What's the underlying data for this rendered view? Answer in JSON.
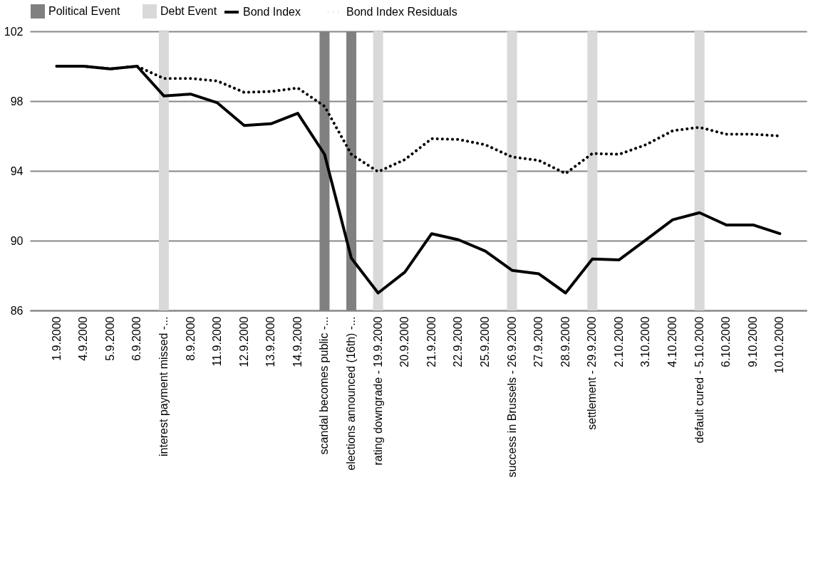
{
  "chart_data": {
    "type": "line",
    "categories": [
      "1.9.2000",
      "4.9.2000",
      "5.9.2000",
      "6.9.2000",
      "interest payment missed -...",
      "8.9.2000",
      "11.9.2000",
      "12.9.2000",
      "13.9.2000",
      "14.9.2000",
      "scandal becomes public -...",
      "elections announced (16th) -...",
      "rating downgrade - 19.9.2000",
      "20.9.2000",
      "21.9.2000",
      "22.9.2000",
      "25.9.2000",
      "success in Brussels - 26.9.2000",
      "27.9.2000",
      "28.9.2000",
      "settlement - 29.9.2000",
      "2.10.2000",
      "3.10.2000",
      "4.10.2000",
      "default cured - 5.10.2000",
      "6.10.2000",
      "9.10.2000",
      "10.10.2000"
    ],
    "series": [
      {
        "name": "Political Event",
        "type": "bar",
        "color": "#808080",
        "values": [
          null,
          null,
          null,
          null,
          null,
          null,
          null,
          null,
          null,
          null,
          102,
          102,
          null,
          null,
          null,
          null,
          null,
          null,
          null,
          null,
          null,
          null,
          null,
          null,
          null,
          null,
          null,
          null
        ]
      },
      {
        "name": "Debt Event",
        "type": "bar",
        "color": "#d9d9d9",
        "values": [
          null,
          null,
          null,
          null,
          102,
          null,
          null,
          null,
          null,
          null,
          null,
          null,
          102,
          null,
          null,
          null,
          null,
          102,
          null,
          null,
          102,
          null,
          null,
          null,
          102,
          null,
          null,
          null
        ]
      },
      {
        "name": "Bond Index",
        "color": "#000000",
        "line_style": "solid",
        "values": [
          100.0,
          100.0,
          99.85,
          100.0,
          98.3,
          98.4,
          97.9,
          96.6,
          96.7,
          97.3,
          94.95,
          89.0,
          87.0,
          88.2,
          90.4,
          90.05,
          89.4,
          88.3,
          88.1,
          87.0,
          88.95,
          88.9,
          90.05,
          91.2,
          91.6,
          90.9,
          90.9,
          90.4
        ]
      },
      {
        "name": "Bond Index Residuals",
        "color": "#000000",
        "line_style": "dotted",
        "values": [
          100.0,
          100.0,
          99.85,
          100.0,
          99.3,
          99.3,
          99.15,
          98.5,
          98.55,
          98.75,
          97.7,
          94.95,
          93.95,
          94.65,
          95.85,
          95.8,
          95.5,
          94.8,
          94.6,
          93.85,
          95.0,
          94.95,
          95.5,
          96.3,
          96.5,
          96.1,
          96.1,
          96.0
        ]
      }
    ],
    "ylim": [
      86,
      102
    ],
    "yticks": [
      86,
      90,
      94,
      98,
      102
    ],
    "grid": "y",
    "legend": "top"
  }
}
